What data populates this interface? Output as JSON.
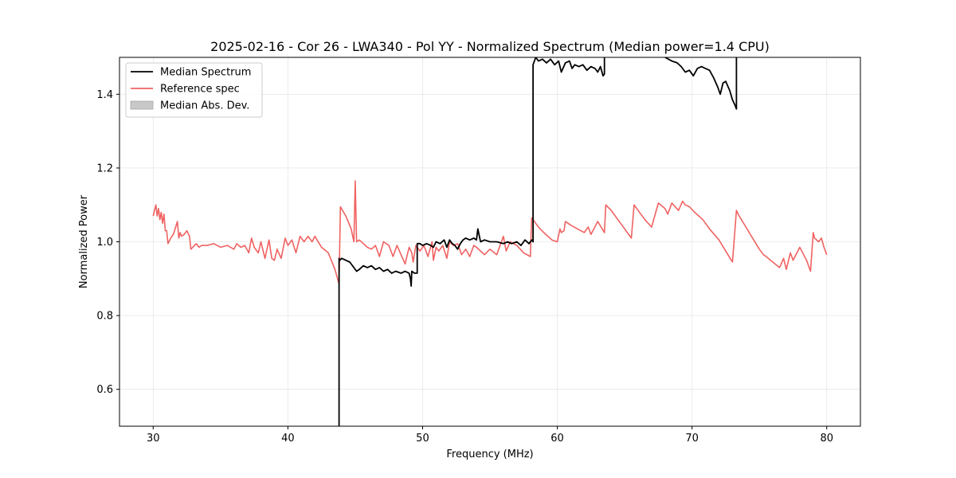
{
  "chart_data": {
    "type": "line",
    "title": "2025-02-16 - Cor 26 - LWA340 - Pol YY - Normalized Spectrum (Median power=1.4 CPU)",
    "xlabel": "Frequency (MHz)",
    "ylabel": "Normalized Power",
    "xlim": [
      27.5,
      82.5
    ],
    "ylim": [
      0.5,
      1.5
    ],
    "xticks": [
      30,
      40,
      50,
      60,
      70,
      80
    ],
    "yticks": [
      0.6,
      0.8,
      1.0,
      1.2,
      1.4
    ],
    "xtick_labels": [
      "30",
      "40",
      "50",
      "60",
      "70",
      "80"
    ],
    "ytick_labels": [
      "0.6",
      "0.8",
      "1.0",
      "1.2",
      "1.4"
    ],
    "grid": true,
    "legend_position": "top-left",
    "colors": {
      "median": "#000000",
      "reference": "#f06262",
      "mad": "#c8c8c8"
    },
    "legend": [
      {
        "label": "Median Spectrum",
        "kind": "line",
        "color": "#000000"
      },
      {
        "label": "Reference spec",
        "kind": "line",
        "color": "#f06262"
      },
      {
        "label": "Median Abs. Dev.",
        "kind": "patch",
        "color": "#c8c8c8"
      }
    ],
    "series": [
      {
        "name": "Reference spec",
        "x": [
          30.0,
          30.2,
          30.3,
          30.4,
          30.5,
          30.6,
          30.7,
          30.8,
          30.9,
          31.0,
          31.1,
          31.3,
          31.5,
          31.8,
          31.9,
          32.0,
          32.1,
          32.3,
          32.5,
          32.7,
          32.8,
          33.2,
          33.4,
          33.6,
          34.0,
          34.5,
          35.0,
          35.5,
          36.0,
          36.2,
          36.5,
          36.8,
          37.1,
          37.3,
          37.5,
          37.8,
          38.0,
          38.3,
          38.6,
          38.8,
          39.0,
          39.2,
          39.5,
          39.8,
          40.0,
          40.3,
          40.6,
          40.9,
          41.2,
          41.5,
          41.8,
          42.0,
          42.5,
          43.0,
          43.5,
          43.8,
          43.9,
          44.3,
          44.7,
          44.9,
          45.0,
          45.1,
          45.3,
          45.6,
          45.9,
          46.2,
          46.5,
          46.8,
          47.1,
          47.5,
          47.8,
          48.1,
          48.4,
          48.7,
          49.0,
          49.2,
          49.3,
          49.5,
          49.8,
          50.1,
          50.4,
          50.7,
          50.8,
          51.0,
          51.2,
          51.5,
          51.8,
          52.0,
          52.3,
          52.6,
          52.9,
          53.2,
          53.5,
          53.8,
          54.0,
          54.3,
          54.6,
          55.0,
          55.5,
          56.0,
          56.2,
          56.5,
          57.0,
          57.5,
          58.0,
          58.1,
          58.2,
          58.6,
          59.0,
          59.3,
          59.6,
          60.0,
          60.2,
          60.3,
          60.5,
          60.6,
          60.8,
          61.0,
          61.5,
          62.0,
          62.3,
          62.5,
          63.0,
          63.5,
          63.6,
          64.0,
          64.5,
          65.0,
          65.5,
          65.7,
          66.0,
          66.5,
          67.0,
          67.5,
          68.0,
          68.2,
          68.5,
          69.0,
          69.3,
          69.5,
          69.8,
          70.2,
          70.8,
          71.3,
          72.0,
          72.5,
          73.0,
          73.3,
          73.5,
          74.0,
          74.5,
          75.0,
          75.3,
          75.5,
          76.0,
          76.5,
          76.8,
          77.0,
          77.3,
          77.5,
          78.0,
          78.5,
          78.8,
          79.0,
          79.1,
          79.4,
          79.6,
          79.8,
          80.0
        ],
        "y": [
          1.07,
          1.1,
          1.07,
          1.09,
          1.06,
          1.08,
          1.05,
          1.075,
          1.03,
          1.03,
          0.995,
          1.01,
          1.02,
          1.055,
          1.01,
          1.025,
          1.015,
          1.02,
          1.03,
          1.015,
          0.98,
          0.995,
          0.985,
          0.99,
          0.99,
          0.995,
          0.985,
          0.99,
          0.98,
          0.995,
          0.985,
          0.99,
          0.97,
          1.01,
          0.985,
          0.97,
          1.0,
          0.955,
          1.005,
          0.955,
          0.95,
          0.98,
          0.955,
          1.01,
          0.99,
          1.005,
          0.97,
          1.015,
          1.0,
          1.015,
          1.0,
          1.015,
          0.985,
          0.97,
          0.925,
          0.885,
          1.095,
          1.07,
          1.035,
          1.0,
          1.165,
          1.0,
          1.005,
          0.995,
          0.985,
          0.98,
          0.99,
          0.96,
          1.0,
          0.99,
          0.96,
          0.99,
          0.965,
          0.94,
          0.985,
          0.97,
          0.945,
          0.99,
          0.975,
          0.99,
          0.96,
          1.0,
          0.95,
          0.985,
          0.975,
          0.99,
          0.955,
          1.0,
          0.99,
          0.995,
          0.965,
          0.98,
          0.96,
          0.99,
          0.985,
          0.975,
          0.965,
          0.98,
          0.965,
          1.015,
          0.975,
          1.0,
          0.99,
          0.97,
          0.96,
          1.065,
          1.06,
          1.04,
          1.025,
          1.015,
          1.005,
          1.0,
          1.035,
          1.025,
          1.03,
          1.055,
          1.05,
          1.045,
          1.035,
          1.025,
          1.04,
          1.02,
          1.055,
          1.025,
          1.1,
          1.085,
          1.06,
          1.035,
          1.01,
          1.1,
          1.085,
          1.06,
          1.04,
          1.105,
          1.09,
          1.075,
          1.105,
          1.085,
          1.11,
          1.1,
          1.095,
          1.08,
          1.06,
          1.035,
          1.005,
          0.975,
          0.945,
          1.085,
          1.07,
          1.04,
          1.01,
          0.98,
          0.965,
          0.96,
          0.945,
          0.93,
          0.955,
          0.925,
          0.97,
          0.95,
          0.985,
          0.95,
          0.92,
          1.025,
          1.01,
          1.0,
          1.01,
          0.985,
          0.965
        ]
      },
      {
        "name": "Median Spectrum",
        "x": [
          43.8,
          43.8,
          43.85,
          44.0,
          44.3,
          44.6,
          44.9,
          45.1,
          45.3,
          45.6,
          45.9,
          46.2,
          46.5,
          46.8,
          47.1,
          47.4,
          47.7,
          48.0,
          48.4,
          48.7,
          49.0,
          49.1,
          49.15,
          49.2,
          49.4,
          49.5,
          49.6,
          49.6,
          49.8,
          50.0,
          50.3,
          50.6,
          50.8,
          51.0,
          51.3,
          51.6,
          51.8,
          52.0,
          52.2,
          52.4,
          52.6,
          52.8,
          53.0,
          53.2,
          53.5,
          53.8,
          54.0,
          54.1,
          54.3,
          54.6,
          55.0,
          55.5,
          56.0,
          56.3,
          56.6,
          57.0,
          57.3,
          57.6,
          57.9,
          58.1,
          58.2,
          58.2,
          58.4,
          58.6,
          58.9,
          59.2,
          59.5,
          59.8,
          60.1,
          60.3,
          60.6,
          60.9,
          61.1,
          61.3,
          61.6,
          61.9,
          62.2,
          62.5,
          62.8,
          63.0,
          63.2,
          63.4,
          63.5,
          63.5
        ],
        "y": [
          0.5,
          0.955,
          0.95,
          0.955,
          0.95,
          0.945,
          0.93,
          0.92,
          0.925,
          0.935,
          0.93,
          0.935,
          0.925,
          0.93,
          0.92,
          0.925,
          0.915,
          0.92,
          0.915,
          0.92,
          0.915,
          0.9,
          0.88,
          0.92,
          0.915,
          0.915,
          0.915,
          0.995,
          0.995,
          0.99,
          0.995,
          0.99,
          0.985,
          1.0,
          0.995,
          1.005,
          0.985,
          1.005,
          0.995,
          0.99,
          0.98,
          0.995,
          1.005,
          1.01,
          1.005,
          1.01,
          1.005,
          1.035,
          1.0,
          1.005,
          1.0,
          1.0,
          0.995,
          1.0,
          0.995,
          1.0,
          0.99,
          1.005,
          0.995,
          1.005,
          1.0,
          1.48,
          1.5,
          1.49,
          1.495,
          1.485,
          1.495,
          1.48,
          1.49,
          1.46,
          1.485,
          1.49,
          1.47,
          1.48,
          1.475,
          1.48,
          1.465,
          1.475,
          1.47,
          1.46,
          1.475,
          1.45,
          1.455,
          1.5
        ]
      },
      {
        "name": "Median Spectrum",
        "x": [
          68.0,
          68.5,
          68.9,
          69.2,
          69.5,
          69.8,
          70.1,
          70.4,
          70.7,
          71.0,
          71.3,
          71.6,
          71.9,
          72.1,
          72.3,
          72.5,
          72.8,
          73.0,
          73.2,
          73.3,
          73.3
        ],
        "y": [
          1.5,
          1.49,
          1.485,
          1.475,
          1.46,
          1.465,
          1.45,
          1.47,
          1.475,
          1.47,
          1.465,
          1.445,
          1.42,
          1.4,
          1.43,
          1.435,
          1.41,
          1.385,
          1.37,
          1.36,
          1.5
        ]
      }
    ]
  }
}
